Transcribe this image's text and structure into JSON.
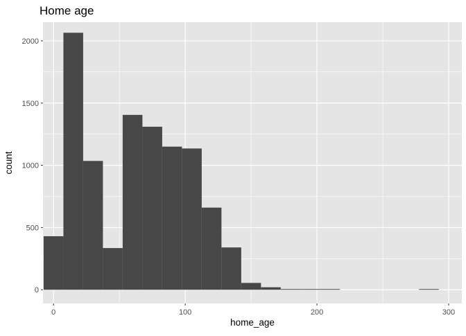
{
  "chart_data": {
    "type": "bar",
    "title": "Home age",
    "xlabel": "home_age",
    "ylabel": "count",
    "xlim": [
      -8,
      310
    ],
    "ylim": [
      -110,
      2150
    ],
    "x_ticks": [
      0,
      100,
      200,
      300
    ],
    "y_ticks": [
      0,
      500,
      1000,
      1500,
      2000
    ],
    "bins": [
      {
        "x0": -7.5,
        "x1": 7.5,
        "count": 430
      },
      {
        "x0": 7.5,
        "x1": 22.5,
        "count": 2065
      },
      {
        "x0": 22.5,
        "x1": 37.5,
        "count": 1035
      },
      {
        "x0": 37.5,
        "x1": 52.5,
        "count": 335
      },
      {
        "x0": 52.5,
        "x1": 67.5,
        "count": 1405
      },
      {
        "x0": 67.5,
        "x1": 82.5,
        "count": 1310
      },
      {
        "x0": 82.5,
        "x1": 97.5,
        "count": 1150
      },
      {
        "x0": 97.5,
        "x1": 112.5,
        "count": 1135
      },
      {
        "x0": 112.5,
        "x1": 127.5,
        "count": 660
      },
      {
        "x0": 127.5,
        "x1": 142.5,
        "count": 340
      },
      {
        "x0": 142.5,
        "x1": 157.5,
        "count": 55
      },
      {
        "x0": 157.5,
        "x1": 172.5,
        "count": 20
      },
      {
        "x0": 172.5,
        "x1": 187.5,
        "count": 5
      },
      {
        "x0": 187.5,
        "x1": 202.5,
        "count": 3
      },
      {
        "x0": 202.5,
        "x1": 217.5,
        "count": 2
      },
      {
        "x0": 217.5,
        "x1": 232.5,
        "count": 0
      },
      {
        "x0": 232.5,
        "x1": 247.5,
        "count": 0
      },
      {
        "x0": 247.5,
        "x1": 262.5,
        "count": 0
      },
      {
        "x0": 262.5,
        "x1": 277.5,
        "count": 0
      },
      {
        "x0": 277.5,
        "x1": 292.5,
        "count": 2
      }
    ],
    "grid": true,
    "colors": {
      "panel": "#e5e5e5",
      "grid": "#ffffff",
      "bar": "#474747"
    }
  }
}
